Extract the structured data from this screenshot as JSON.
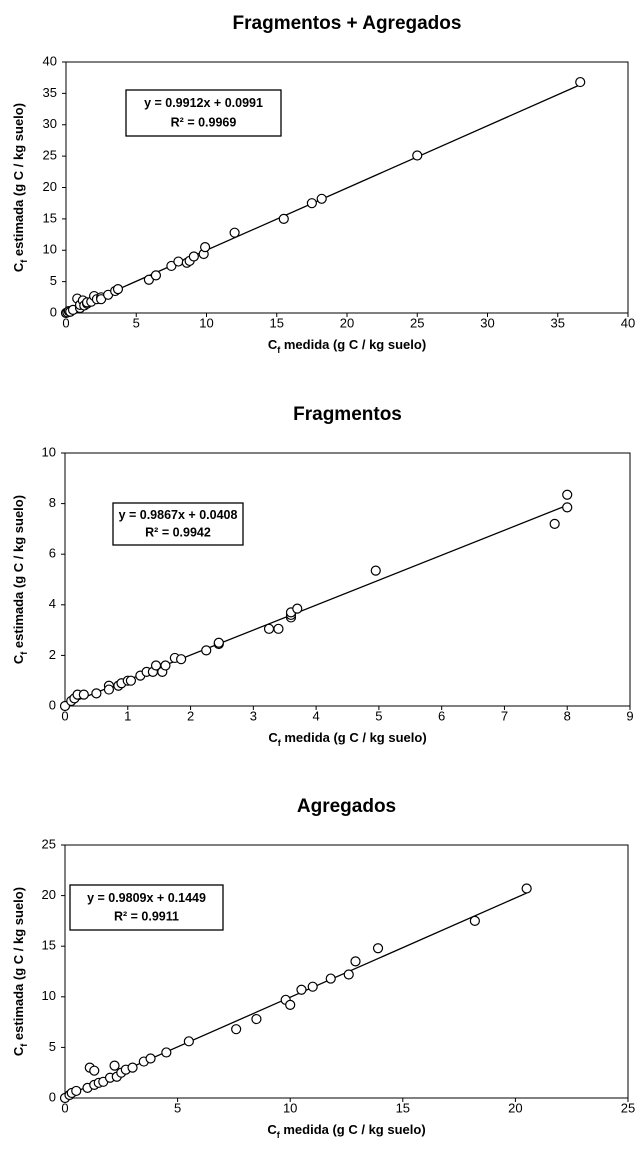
{
  "chart_data": [
    {
      "type": "scatter",
      "title": "Fragmentos + Agregados",
      "xlabel": [
        "C",
        "f",
        " medida (g C / kg suelo)"
      ],
      "ylabel": [
        "C",
        "f",
        " estimada (g C / kg suelo)"
      ],
      "xlim": [
        0,
        40
      ],
      "xticks": [
        0,
        5,
        10,
        15,
        20,
        25,
        30,
        35,
        40
      ],
      "ylim": [
        0,
        40
      ],
      "yticks": [
        0,
        5,
        10,
        15,
        20,
        25,
        30,
        35,
        40
      ],
      "annotations": [
        "y = 0.9912x + 0.0991",
        "R² = 0.9969"
      ],
      "trendline": {
        "slope": 0.9912,
        "intercept": 0.0991
      },
      "color": "#000000",
      "x": [
        0,
        0.1,
        0.2,
        0.3,
        0.5,
        0.8,
        1,
        1,
        1.2,
        1.3,
        1.5,
        1.5,
        1.8,
        2,
        2.2,
        2.5,
        2.5,
        3,
        3.5,
        3.7,
        5.9,
        6.4,
        7.5,
        8,
        8.6,
        8.8,
        9.1,
        9.8,
        9.9,
        12,
        15.5,
        17.5,
        18.2,
        25,
        36.6
      ],
      "y": [
        0,
        0.1,
        0.3,
        0.2,
        0.5,
        2.3,
        0.8,
        1.3,
        2,
        1.2,
        1.5,
        1.7,
        1.8,
        2.7,
        2.2,
        2.5,
        2.2,
        2.9,
        3.5,
        3.8,
        5.3,
        6,
        7.5,
        8.2,
        8,
        8.3,
        9,
        9.4,
        10.5,
        12.8,
        15,
        17.5,
        18.2,
        25.1,
        36.8
      ]
    },
    {
      "type": "scatter",
      "title": "Fragmentos",
      "xlabel": [
        "C",
        "f",
        " medida (g C / kg suelo)"
      ],
      "ylabel": [
        "C",
        "f",
        " estimada (g C / kg suelo)"
      ],
      "xlim": [
        0,
        9
      ],
      "xticks": [
        0,
        1,
        2,
        3,
        4,
        5,
        6,
        7,
        8,
        9
      ],
      "ylim": [
        0,
        10
      ],
      "yticks": [
        0,
        2,
        4,
        6,
        8,
        10
      ],
      "annotations": [
        "y = 0.9867x + 0.0408",
        "R² = 0.9942"
      ],
      "trendline": {
        "slope": 0.9867,
        "intercept": 0.0408
      },
      "color": "#000000",
      "x": [
        0,
        0.1,
        0.15,
        0.2,
        0.3,
        0.5,
        0.7,
        0.7,
        0.85,
        0.9,
        1,
        1.05,
        1.2,
        1.3,
        1.4,
        1.45,
        1.55,
        1.6,
        1.75,
        1.85,
        2.25,
        2.45,
        2.45,
        3.25,
        3.4,
        3.6,
        3.6,
        3.6,
        3.7,
        4.95,
        7.8,
        8,
        8
      ],
      "y": [
        0,
        0.2,
        0.3,
        0.45,
        0.45,
        0.5,
        0.8,
        0.65,
        0.8,
        0.9,
        1,
        1,
        1.2,
        1.35,
        1.35,
        1.6,
        1.35,
        1.6,
        1.9,
        1.85,
        2.2,
        2.45,
        2.5,
        3.05,
        3.05,
        3.5,
        3.6,
        3.7,
        3.85,
        5.35,
        7.2,
        7.85,
        8.35
      ]
    },
    {
      "type": "scatter",
      "title": "Agregados",
      "xlabel": [
        "C",
        "f",
        " medida (g C / kg suelo)"
      ],
      "ylabel": [
        "C",
        "f",
        " estimada (g C / kg suelo)"
      ],
      "xlim": [
        0,
        25
      ],
      "xticks": [
        0,
        5,
        10,
        15,
        20,
        25
      ],
      "ylim": [
        0,
        25
      ],
      "yticks": [
        0,
        5,
        10,
        15,
        20,
        25
      ],
      "annotations": [
        "y = 0.9809x + 0.1449",
        "R² = 0.9911"
      ],
      "trendline": {
        "slope": 0.9809,
        "intercept": 0.1449
      },
      "color": "#000000",
      "x": [
        0,
        0.2,
        0.3,
        0.5,
        1,
        1.1,
        1.3,
        1.3,
        1.5,
        1.7,
        2,
        2.2,
        2.3,
        2.5,
        2.7,
        3,
        3.5,
        3.8,
        4.5,
        5.5,
        7.6,
        8.5,
        9.8,
        10,
        10.5,
        11,
        11.8,
        12.6,
        12.9,
        13.9,
        18.2,
        20.5
      ],
      "y": [
        0,
        0.3,
        0.5,
        0.7,
        1,
        3,
        2.7,
        1.3,
        1.5,
        1.6,
        2,
        3.2,
        2.1,
        2.5,
        2.8,
        3,
        3.6,
        3.9,
        4.5,
        5.6,
        6.8,
        7.8,
        9.7,
        9.2,
        10.7,
        11,
        11.8,
        12.2,
        13.5,
        14.8,
        17.5,
        20.7
      ]
    }
  ]
}
